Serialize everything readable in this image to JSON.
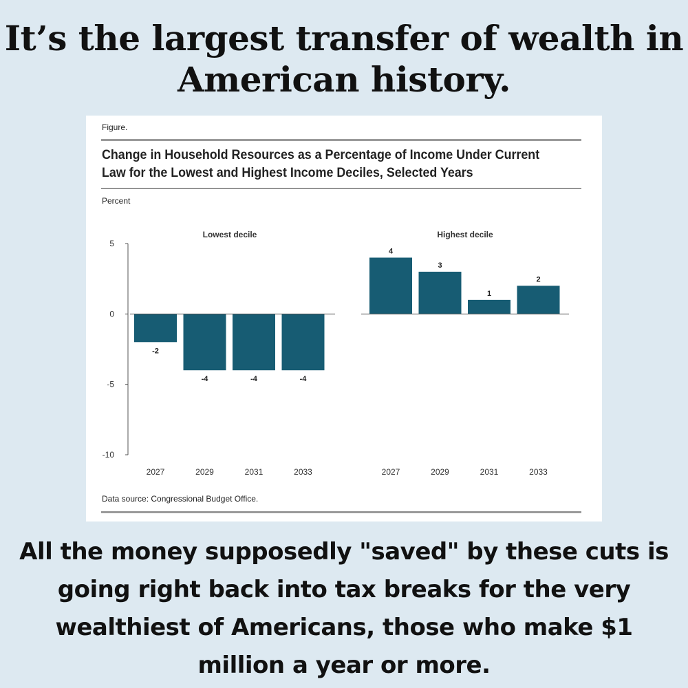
{
  "headline": "It’s the largest transfer of wealth in American history.",
  "figure": {
    "label": "Figure.",
    "title": "Change in Household Resources as a Percentage of Income Under Current Law for the Lowest and Highest Income Deciles, Selected Years",
    "unit": "Percent",
    "source": "Data source: Congressional Budget Office."
  },
  "chart_data": {
    "type": "bar",
    "ylabel": "Percent",
    "ylim": [
      -10,
      5
    ],
    "yticks": [
      5,
      0,
      -5,
      -10
    ],
    "grid": false,
    "bar_color": "#175c73",
    "panels": [
      {
        "title": "Lowest decile",
        "categories": [
          "2027",
          "2029",
          "2031",
          "2033"
        ],
        "values": [
          -2,
          -4,
          -4,
          -4
        ],
        "labels": [
          "-2",
          "-4",
          "-4",
          "-4"
        ]
      },
      {
        "title": "Highest decile",
        "categories": [
          "2027",
          "2029",
          "2031",
          "2033"
        ],
        "values": [
          4,
          3,
          1,
          2
        ],
        "labels": [
          "4",
          "3",
          "1",
          "2"
        ]
      }
    ]
  },
  "footer": "All the money supposedly \"saved\" by these cuts is going right back into tax breaks for the very wealthiest of Americans, those who make $1 million a year or more."
}
